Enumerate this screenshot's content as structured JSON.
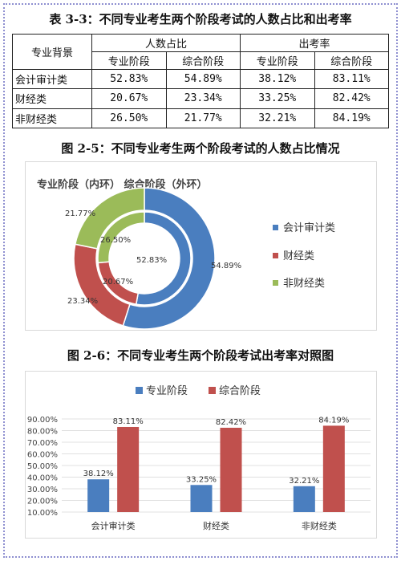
{
  "table": {
    "title": "表 3-3：不同专业考生两个阶段考试的人数占比和出考率",
    "header_background": "专业背景",
    "group_ratio": "人数占比",
    "group_rate": "出考率",
    "sub_headers": [
      "专业阶段",
      "综合阶段",
      "专业阶段",
      "综合阶段"
    ],
    "rows": [
      {
        "label": "会计审计类",
        "cells": [
          "52.83%",
          "54.89%",
          "38.12%",
          "83.11%"
        ]
      },
      {
        "label": "财经类",
        "cells": [
          "20.67%",
          "23.34%",
          "33.25%",
          "82.42%"
        ]
      },
      {
        "label": "非财经类",
        "cells": [
          "26.50%",
          "21.77%",
          "32.21%",
          "84.19%"
        ]
      }
    ]
  },
  "fig1": {
    "caption": "图 2-5：不同专业考生两个阶段考试的人数占比情况"
  },
  "fig2": {
    "caption": "图 2-6：不同专业考生两个阶段考试出考率对照图"
  },
  "colors": {
    "blue": "#4a7ebf",
    "red": "#c0504d",
    "green": "#9bbb59"
  },
  "chart_data": [
    {
      "type": "pie",
      "title": "专业阶段（内环）   综合阶段（外环）",
      "categories": [
        "会计审计类",
        "财经类",
        "非财经类"
      ],
      "series": [
        {
          "name": "专业阶段（内环）",
          "values": [
            52.83,
            20.67,
            26.5
          ],
          "labels": [
            "52.83%",
            "20.67%",
            "26.50%"
          ]
        },
        {
          "name": "综合阶段（外环）",
          "values": [
            54.89,
            23.34,
            21.77
          ],
          "labels": [
            "54.89%",
            "23.34%",
            "21.77%"
          ]
        }
      ],
      "legend": [
        "会计审计类",
        "财经类",
        "非财经类"
      ],
      "legend_position": "right"
    },
    {
      "type": "bar",
      "categories": [
        "会计审计类",
        "财经类",
        "非财经类"
      ],
      "series": [
        {
          "name": "专业阶段",
          "values": [
            38.12,
            33.25,
            32.21
          ],
          "labels": [
            "38.12%",
            "33.25%",
            "32.21%"
          ]
        },
        {
          "name": "综合阶段",
          "values": [
            83.11,
            82.42,
            84.19
          ],
          "labels": [
            "83.11%",
            "82.42%",
            "84.19%"
          ]
        }
      ],
      "yticks": [
        "10.00%",
        "20.00%",
        "30.00%",
        "40.00%",
        "50.00%",
        "60.00%",
        "70.00%",
        "80.00%",
        "90.00%"
      ],
      "ylim": [
        10,
        90
      ],
      "legend_position": "top"
    }
  ]
}
